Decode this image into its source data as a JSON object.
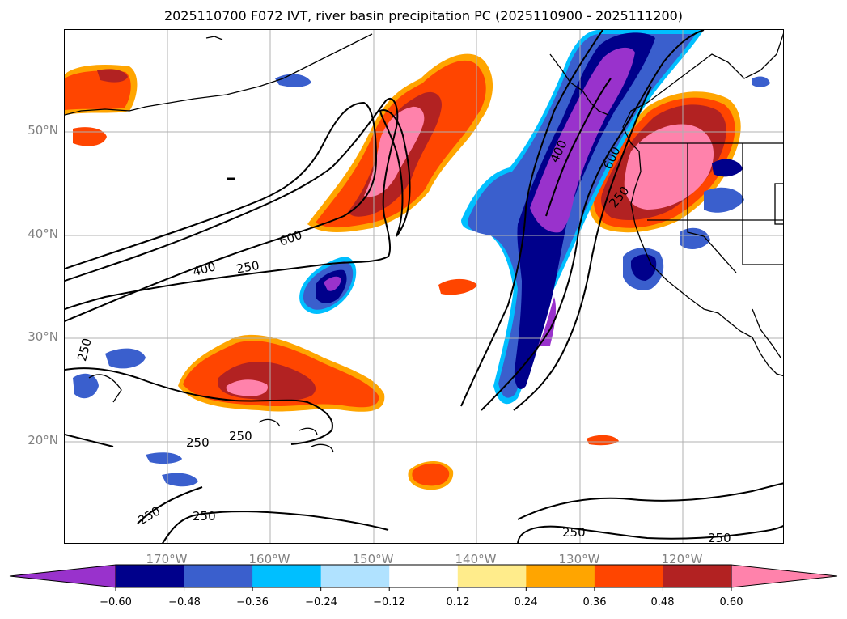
{
  "title": "2025110700 F072 IVT, river basin precipitation PC (2025110900 - 2025111200)",
  "lat_labels": [
    "50°N",
    "40°N",
    "30°N",
    "20°N"
  ],
  "lon_labels": [
    "170°W",
    "160°W",
    "150°W",
    "140°W",
    "130°W",
    "120°W"
  ],
  "map_extent": {
    "lon_min": -180,
    "lon_max": -110.3,
    "lat_min": 10,
    "lat_max": 59.9
  },
  "contour_labels": [
    "600",
    "400",
    "250",
    "250",
    "400",
    "600",
    "250",
    "250",
    "250",
    "250",
    "250",
    "250",
    "250"
  ],
  "colorbar": {
    "levels": [
      -0.72,
      -0.6,
      -0.48,
      -0.36,
      -0.24,
      -0.12,
      0.12,
      0.24,
      0.36,
      0.48,
      0.6,
      0.72
    ],
    "tick_labels": [
      "−0.60",
      "−0.48",
      "−0.36",
      "−0.24",
      "−0.12",
      "0.12",
      "0.24",
      "0.36",
      "0.48",
      "0.60"
    ],
    "colors": [
      "#9932cc",
      "#00008b",
      "#3a5fcd",
      "#00bfff",
      "#b0e2ff",
      "#ffffff",
      "#ffec8b",
      "#ffa500",
      "#ff4500",
      "#b22222",
      "#ff82ab"
    ],
    "extend": "both"
  },
  "colors": {
    "grid": "#b0b0b0",
    "contour": "#000000",
    "coast": "#000000",
    "axis_label": "#808080"
  }
}
